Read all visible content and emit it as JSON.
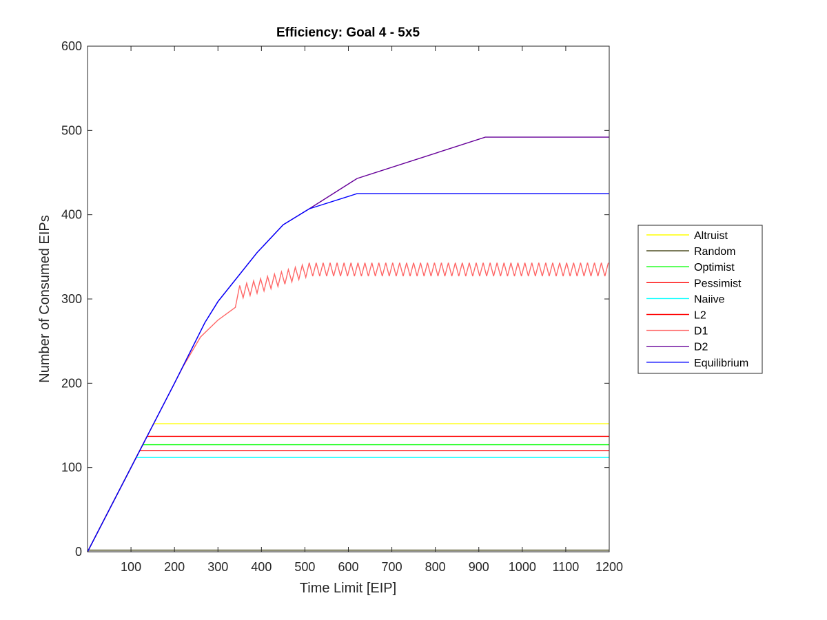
{
  "chart_data": {
    "type": "line",
    "title": "Efficiency: Goal 4 - 5x5",
    "xlabel": "Time Limit [EIP]",
    "ylabel": "Number of Consumed EIPs",
    "xlim": [
      0,
      1200
    ],
    "ylim": [
      0,
      600
    ],
    "xticks": [
      "100",
      "200",
      "300",
      "400",
      "500",
      "600",
      "700",
      "800",
      "900",
      "1000",
      "1100",
      "1200"
    ],
    "yticks": [
      "0",
      "100",
      "200",
      "300",
      "400",
      "500",
      "600"
    ],
    "grid": false,
    "legend_position": "outside-right",
    "series": [
      {
        "name": "Altruist",
        "color": "#ffff00",
        "x": [
          0,
          152,
          1200
        ],
        "y": [
          0,
          152,
          152
        ]
      },
      {
        "name": "Random",
        "color": "#333300",
        "x": [
          0,
          1200
        ],
        "y": [
          2,
          2
        ]
      },
      {
        "name": "Optimist",
        "color": "#00ff00",
        "x": [
          0,
          127,
          1200
        ],
        "y": [
          0,
          127,
          127
        ]
      },
      {
        "name": "Pessimist",
        "color": "#ff0000",
        "x": [
          0,
          120,
          1200
        ],
        "y": [
          0,
          120,
          120
        ]
      },
      {
        "name": "Naiive",
        "color": "#00ffff",
        "x": [
          0,
          112,
          1200
        ],
        "y": [
          0,
          112,
          112
        ]
      },
      {
        "name": "L2",
        "color": "#ff0000",
        "x": [
          0,
          137,
          1200
        ],
        "y": [
          0,
          137,
          137
        ]
      },
      {
        "name": "D1",
        "color": "#ff6666",
        "x": [
          0,
          100,
          200,
          220,
          260,
          300,
          340,
          380,
          420,
          460,
          500,
          510,
          1200
        ],
        "y": [
          0,
          100,
          200,
          220,
          255,
          275,
          290,
          305,
          320,
          325,
          333,
          336,
          336
        ],
        "oscillation": {
          "from": 350,
          "to": 1200,
          "low": 327,
          "high": 343
        }
      },
      {
        "name": "D2",
        "color": "#660099",
        "x": [
          0,
          100,
          200,
          270,
          300,
          390,
          450,
          510,
          620,
          915,
          1200
        ],
        "y": [
          0,
          100,
          200,
          272,
          297,
          355,
          388,
          407,
          443,
          492,
          492
        ]
      },
      {
        "name": "Equilibrium",
        "color": "#0000ff",
        "x": [
          0,
          100,
          200,
          270,
          300,
          390,
          450,
          510,
          620,
          1200
        ],
        "y": [
          0,
          100,
          200,
          272,
          297,
          355,
          388,
          407,
          425,
          425
        ]
      }
    ]
  }
}
